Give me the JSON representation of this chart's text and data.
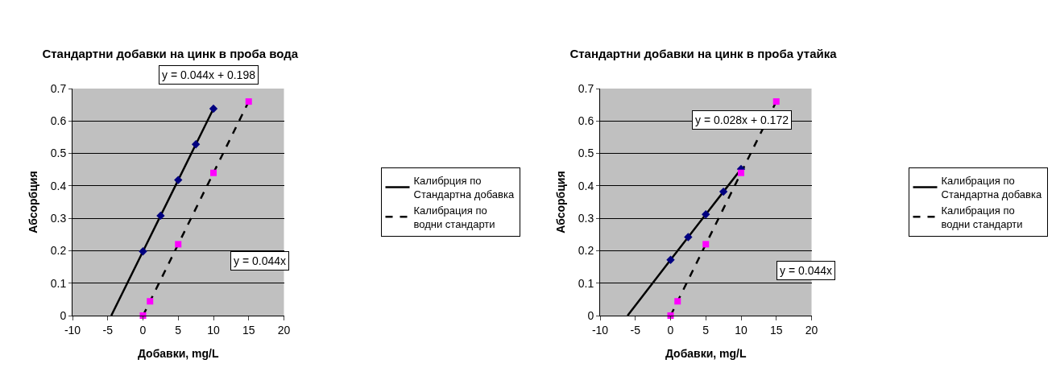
{
  "chart_data": [
    {
      "type": "line",
      "title": "Стандартни добавки на цинк в проба вода",
      "xlabel": "Добавки, mg/L",
      "ylabel": "Абсорбция",
      "xlim": [
        -10,
        20
      ],
      "xticks": [
        -10,
        -5,
        0,
        5,
        10,
        15,
        20
      ],
      "ylim": [
        0,
        0.7
      ],
      "yticks": [
        0,
        0.1,
        0.2,
        0.3,
        0.4,
        0.5,
        0.6,
        0.7
      ],
      "grid": "y",
      "legend": "right",
      "annotations": [
        "y = 0.044x + 0.198",
        "y = 0.044x"
      ],
      "series": [
        {
          "type": "line",
          "name": "Калибрция по Стандартна добавка",
          "color": "#000000",
          "line_style": "solid",
          "marker": "none",
          "x": [
            -4.5,
            0,
            2.5,
            5,
            7.5,
            10
          ],
          "values": [
            0,
            0.198,
            0.308,
            0.418,
            0.528,
            0.638
          ]
        },
        {
          "type": "line",
          "name": "Калибрация по водни стандарти",
          "color": "#000000",
          "line_style": "dashed",
          "marker": "none",
          "x": [
            0,
            1,
            5,
            10,
            15
          ],
          "values": [
            0,
            0.044,
            0.22,
            0.44,
            0.66
          ]
        },
        {
          "type": "scatter",
          "color": "#000080",
          "marker": "diamond",
          "x": [
            0,
            2.5,
            5,
            7.5,
            10
          ],
          "values": [
            0.198,
            0.308,
            0.418,
            0.528,
            0.638
          ]
        },
        {
          "type": "scatter",
          "color": "#ff00ff",
          "marker": "square",
          "x": [
            0,
            1,
            5,
            10,
            15
          ],
          "values": [
            0,
            0.044,
            0.22,
            0.44,
            0.66
          ]
        }
      ]
    },
    {
      "type": "line",
      "title": "Стандартни добавки на цинк в проба утайка",
      "xlabel": "Добавки, mg/L",
      "ylabel": "Абсорбция",
      "xlim": [
        -10,
        20
      ],
      "xticks": [
        -10,
        -5,
        0,
        5,
        10,
        15,
        20
      ],
      "ylim": [
        0,
        0.7
      ],
      "yticks": [
        0,
        0.1,
        0.2,
        0.3,
        0.4,
        0.5,
        0.6,
        0.7
      ],
      "grid": "y",
      "legend": "right",
      "annotations": [
        "y = 0.028x + 0.172",
        "y = 0.044x"
      ],
      "series": [
        {
          "type": "line",
          "name": "Калибрация по Стандартна добавка",
          "color": "#000000",
          "line_style": "solid",
          "marker": "none",
          "x": [
            -6.1,
            0,
            2.5,
            5,
            7.5,
            10
          ],
          "values": [
            0,
            0.172,
            0.242,
            0.312,
            0.382,
            0.452
          ]
        },
        {
          "type": "line",
          "name": "Калибрация по водни стандарти",
          "color": "#000000",
          "line_style": "dashed",
          "marker": "none",
          "x": [
            0,
            1,
            5,
            10,
            15
          ],
          "values": [
            0,
            0.044,
            0.22,
            0.44,
            0.66
          ]
        },
        {
          "type": "scatter",
          "color": "#000080",
          "marker": "diamond",
          "x": [
            0,
            2.5,
            5,
            7.5,
            10
          ],
          "values": [
            0.172,
            0.242,
            0.312,
            0.382,
            0.452
          ]
        },
        {
          "type": "scatter",
          "color": "#ff00ff",
          "marker": "square",
          "x": [
            0,
            1,
            5,
            10,
            15
          ],
          "values": [
            0,
            0.044,
            0.22,
            0.44,
            0.66
          ]
        }
      ]
    }
  ]
}
